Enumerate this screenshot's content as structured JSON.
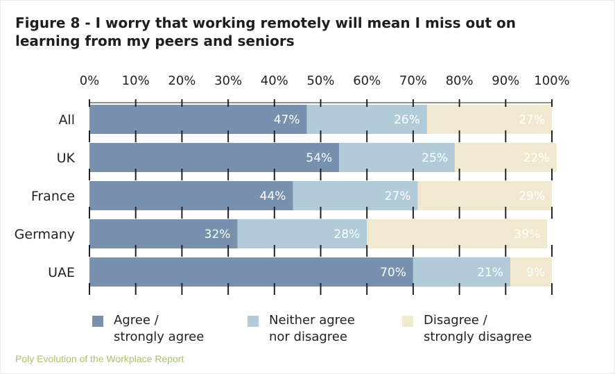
{
  "title": "Figure 8 - I worry that working remotely will mean I miss out on learning from my peers and seniors",
  "source": "Poly Evolution of the Workplace Report",
  "legend": [
    {
      "label": "Agree /\nstrongly agree",
      "color": "#7791ae"
    },
    {
      "label": "Neither agree\nnor disagree",
      "color": "#b1cbd9"
    },
    {
      "label": "Disagree /\nstrongly disagree",
      "color": "#f0e8cf"
    }
  ],
  "chart_data": {
    "type": "bar",
    "orientation": "horizontal",
    "stacked": true,
    "title": "Figure 8 - I worry that working remotely will mean I miss out on learning from my peers and seniors",
    "categories": [
      "All",
      "UK",
      "France",
      "Germany",
      "UAE"
    ],
    "series": [
      {
        "name": "Agree / strongly agree",
        "values": [
          47,
          54,
          44,
          32,
          70
        ],
        "labels": [
          "47%",
          "54%",
          "44%",
          "32%",
          "70%"
        ],
        "color": "#7791ae"
      },
      {
        "name": "Neither agree nor disagree",
        "values": [
          26,
          25,
          27,
          28,
          21
        ],
        "labels": [
          "26%",
          "25%",
          "27%",
          "28%",
          "21%"
        ],
        "color": "#b1cbd9"
      },
      {
        "name": "Disagree / strongly disagree",
        "values": [
          27,
          22,
          29,
          39,
          9
        ],
        "labels": [
          "27%",
          "22%",
          "29%",
          "39%",
          "9%"
        ],
        "color": "#f0e8cf"
      }
    ],
    "xticks": [
      "0%",
      "10%",
      "20%",
      "30%",
      "40%",
      "50%",
      "60%",
      "70%",
      "80%",
      "90%",
      "100%"
    ],
    "xlim": [
      0,
      100
    ],
    "xaxis_position": "top",
    "grid": true,
    "legend_position": "bottom"
  }
}
